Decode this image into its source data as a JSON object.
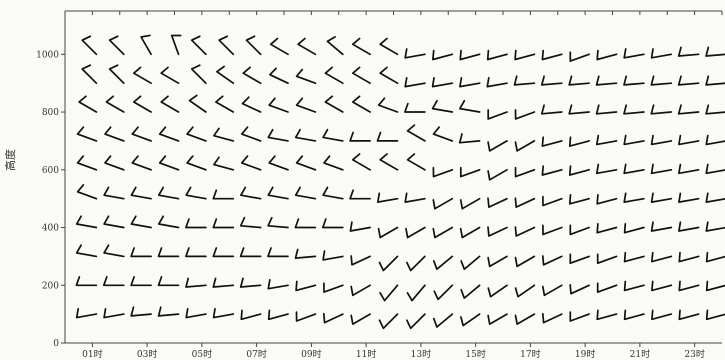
{
  "chart_data": {
    "type": "wind-barb time-height section",
    "title": "",
    "xlabel": "",
    "ylabel": "高度",
    "x_ticks": [
      "01时",
      "03时",
      "05时",
      "07时",
      "09时",
      "11时",
      "13时",
      "15时",
      "17时",
      "19时",
      "21时",
      "23时"
    ],
    "y_ticks": [
      {
        "value": 1000,
        "label": "1000"
      },
      {
        "value": 800,
        "label": "800"
      },
      {
        "value": 600,
        "label": "600"
      },
      {
        "value": 400,
        "label": "400"
      },
      {
        "value": 200,
        "label": "200"
      },
      {
        "value": 0,
        "label": "0"
      }
    ],
    "ylim": [
      0,
      1150
    ],
    "x_range_hours": [
      0,
      24
    ],
    "levels_m": [
      1000,
      900,
      800,
      700,
      600,
      500,
      400,
      300,
      200,
      100
    ],
    "times_h": [
      1,
      2,
      3,
      4,
      5,
      6,
      7,
      8,
      9,
      10,
      11,
      12,
      13,
      14,
      15,
      16,
      17,
      18,
      19,
      20,
      21,
      22,
      23,
      24
    ],
    "rows": [
      {
        "height": 1000,
        "dir": [
          315,
          315,
          330,
          340,
          315,
          315,
          315,
          300,
          300,
          310,
          300,
          300,
          260,
          255,
          255,
          255,
          255,
          255,
          250,
          255,
          260,
          260,
          265,
          265
        ],
        "spd": [
          4,
          4,
          4,
          4,
          4,
          4,
          4,
          4,
          4,
          4,
          4,
          4,
          4,
          4,
          4,
          4,
          4,
          4,
          4,
          4,
          4,
          4,
          4,
          4
        ]
      },
      {
        "height": 900,
        "dir": [
          315,
          315,
          300,
          300,
          315,
          305,
          300,
          295,
          290,
          300,
          300,
          300,
          260,
          260,
          260,
          260,
          265,
          265,
          265,
          265,
          265,
          265,
          265,
          265
        ],
        "spd": [
          4,
          4,
          4,
          4,
          4,
          4,
          4,
          4,
          4,
          4,
          4,
          4,
          4,
          4,
          4,
          4,
          4,
          4,
          4,
          4,
          4,
          4,
          4,
          4
        ]
      },
      {
        "height": 800,
        "dir": [
          300,
          300,
          300,
          300,
          305,
          300,
          295,
          290,
          290,
          300,
          300,
          290,
          270,
          280,
          280,
          250,
          250,
          265,
          265,
          265,
          265,
          265,
          265,
          265
        ],
        "spd": [
          4,
          4,
          4,
          4,
          4,
          4,
          4,
          4,
          4,
          4,
          4,
          4,
          4,
          4,
          4,
          4,
          4,
          4,
          4,
          4,
          4,
          4,
          4,
          4
        ]
      },
      {
        "height": 700,
        "dir": [
          290,
          290,
          290,
          290,
          290,
          285,
          290,
          280,
          280,
          280,
          270,
          270,
          300,
          290,
          265,
          240,
          240,
          255,
          255,
          260,
          260,
          260,
          260,
          260
        ],
        "spd": [
          4,
          4,
          4,
          4,
          4,
          4,
          4,
          4,
          4,
          4,
          4,
          4,
          4,
          4,
          4,
          4,
          4,
          4,
          4,
          4,
          4,
          4,
          4,
          4
        ]
      },
      {
        "height": 600,
        "dir": [
          290,
          290,
          290,
          290,
          290,
          285,
          290,
          290,
          290,
          290,
          300,
          300,
          300,
          250,
          250,
          240,
          250,
          255,
          255,
          260,
          260,
          260,
          260,
          260
        ],
        "spd": [
          4,
          4,
          4,
          4,
          4,
          4,
          4,
          4,
          4,
          4,
          4,
          4,
          4,
          4,
          4,
          4,
          4,
          4,
          4,
          4,
          4,
          4,
          4,
          4
        ]
      },
      {
        "height": 500,
        "dir": [
          290,
          280,
          280,
          280,
          280,
          270,
          280,
          280,
          280,
          280,
          270,
          260,
          260,
          240,
          240,
          245,
          245,
          250,
          255,
          255,
          260,
          260,
          260,
          260
        ],
        "spd": [
          4,
          4,
          4,
          4,
          4,
          4,
          4,
          4,
          4,
          4,
          4,
          4,
          4,
          4,
          4,
          4,
          4,
          4,
          4,
          4,
          4,
          4,
          4,
          4
        ]
      },
      {
        "height": 400,
        "dir": [
          280,
          280,
          280,
          280,
          270,
          270,
          275,
          275,
          270,
          270,
          260,
          240,
          240,
          240,
          240,
          245,
          245,
          250,
          250,
          255,
          255,
          260,
          260,
          260
        ],
        "spd": [
          4,
          4,
          4,
          4,
          4,
          4,
          4,
          4,
          4,
          4,
          4,
          4,
          4,
          4,
          4,
          4,
          4,
          4,
          4,
          4,
          4,
          4,
          4,
          4
        ]
      },
      {
        "height": 300,
        "dir": [
          280,
          280,
          270,
          270,
          270,
          270,
          270,
          270,
          265,
          260,
          245,
          225,
          225,
          230,
          230,
          240,
          240,
          245,
          250,
          250,
          255,
          255,
          255,
          255
        ],
        "spd": [
          4,
          4,
          4,
          4,
          4,
          4,
          4,
          4,
          4,
          4,
          4,
          4,
          4,
          4,
          4,
          4,
          4,
          4,
          4,
          4,
          4,
          4,
          4,
          4
        ]
      },
      {
        "height": 200,
        "dir": [
          270,
          270,
          270,
          270,
          265,
          265,
          265,
          260,
          255,
          250,
          240,
          220,
          220,
          225,
          230,
          235,
          235,
          240,
          245,
          250,
          255,
          255,
          255,
          255
        ],
        "spd": [
          4,
          4,
          4,
          4,
          4,
          4,
          4,
          4,
          4,
          4,
          4,
          4,
          4,
          4,
          4,
          4,
          4,
          4,
          4,
          4,
          4,
          4,
          4,
          4
        ]
      },
      {
        "height": 100,
        "dir": [
          260,
          260,
          265,
          265,
          260,
          260,
          255,
          255,
          250,
          245,
          240,
          225,
          225,
          230,
          235,
          240,
          240,
          245,
          250,
          255,
          255,
          255,
          255,
          255
        ],
        "spd": [
          4,
          4,
          4,
          4,
          4,
          4,
          4,
          4,
          4,
          4,
          4,
          4,
          4,
          4,
          4,
          4,
          4,
          4,
          4,
          4,
          4,
          4,
          4,
          4
        ]
      }
    ],
    "grid": false,
    "legend": "none"
  }
}
